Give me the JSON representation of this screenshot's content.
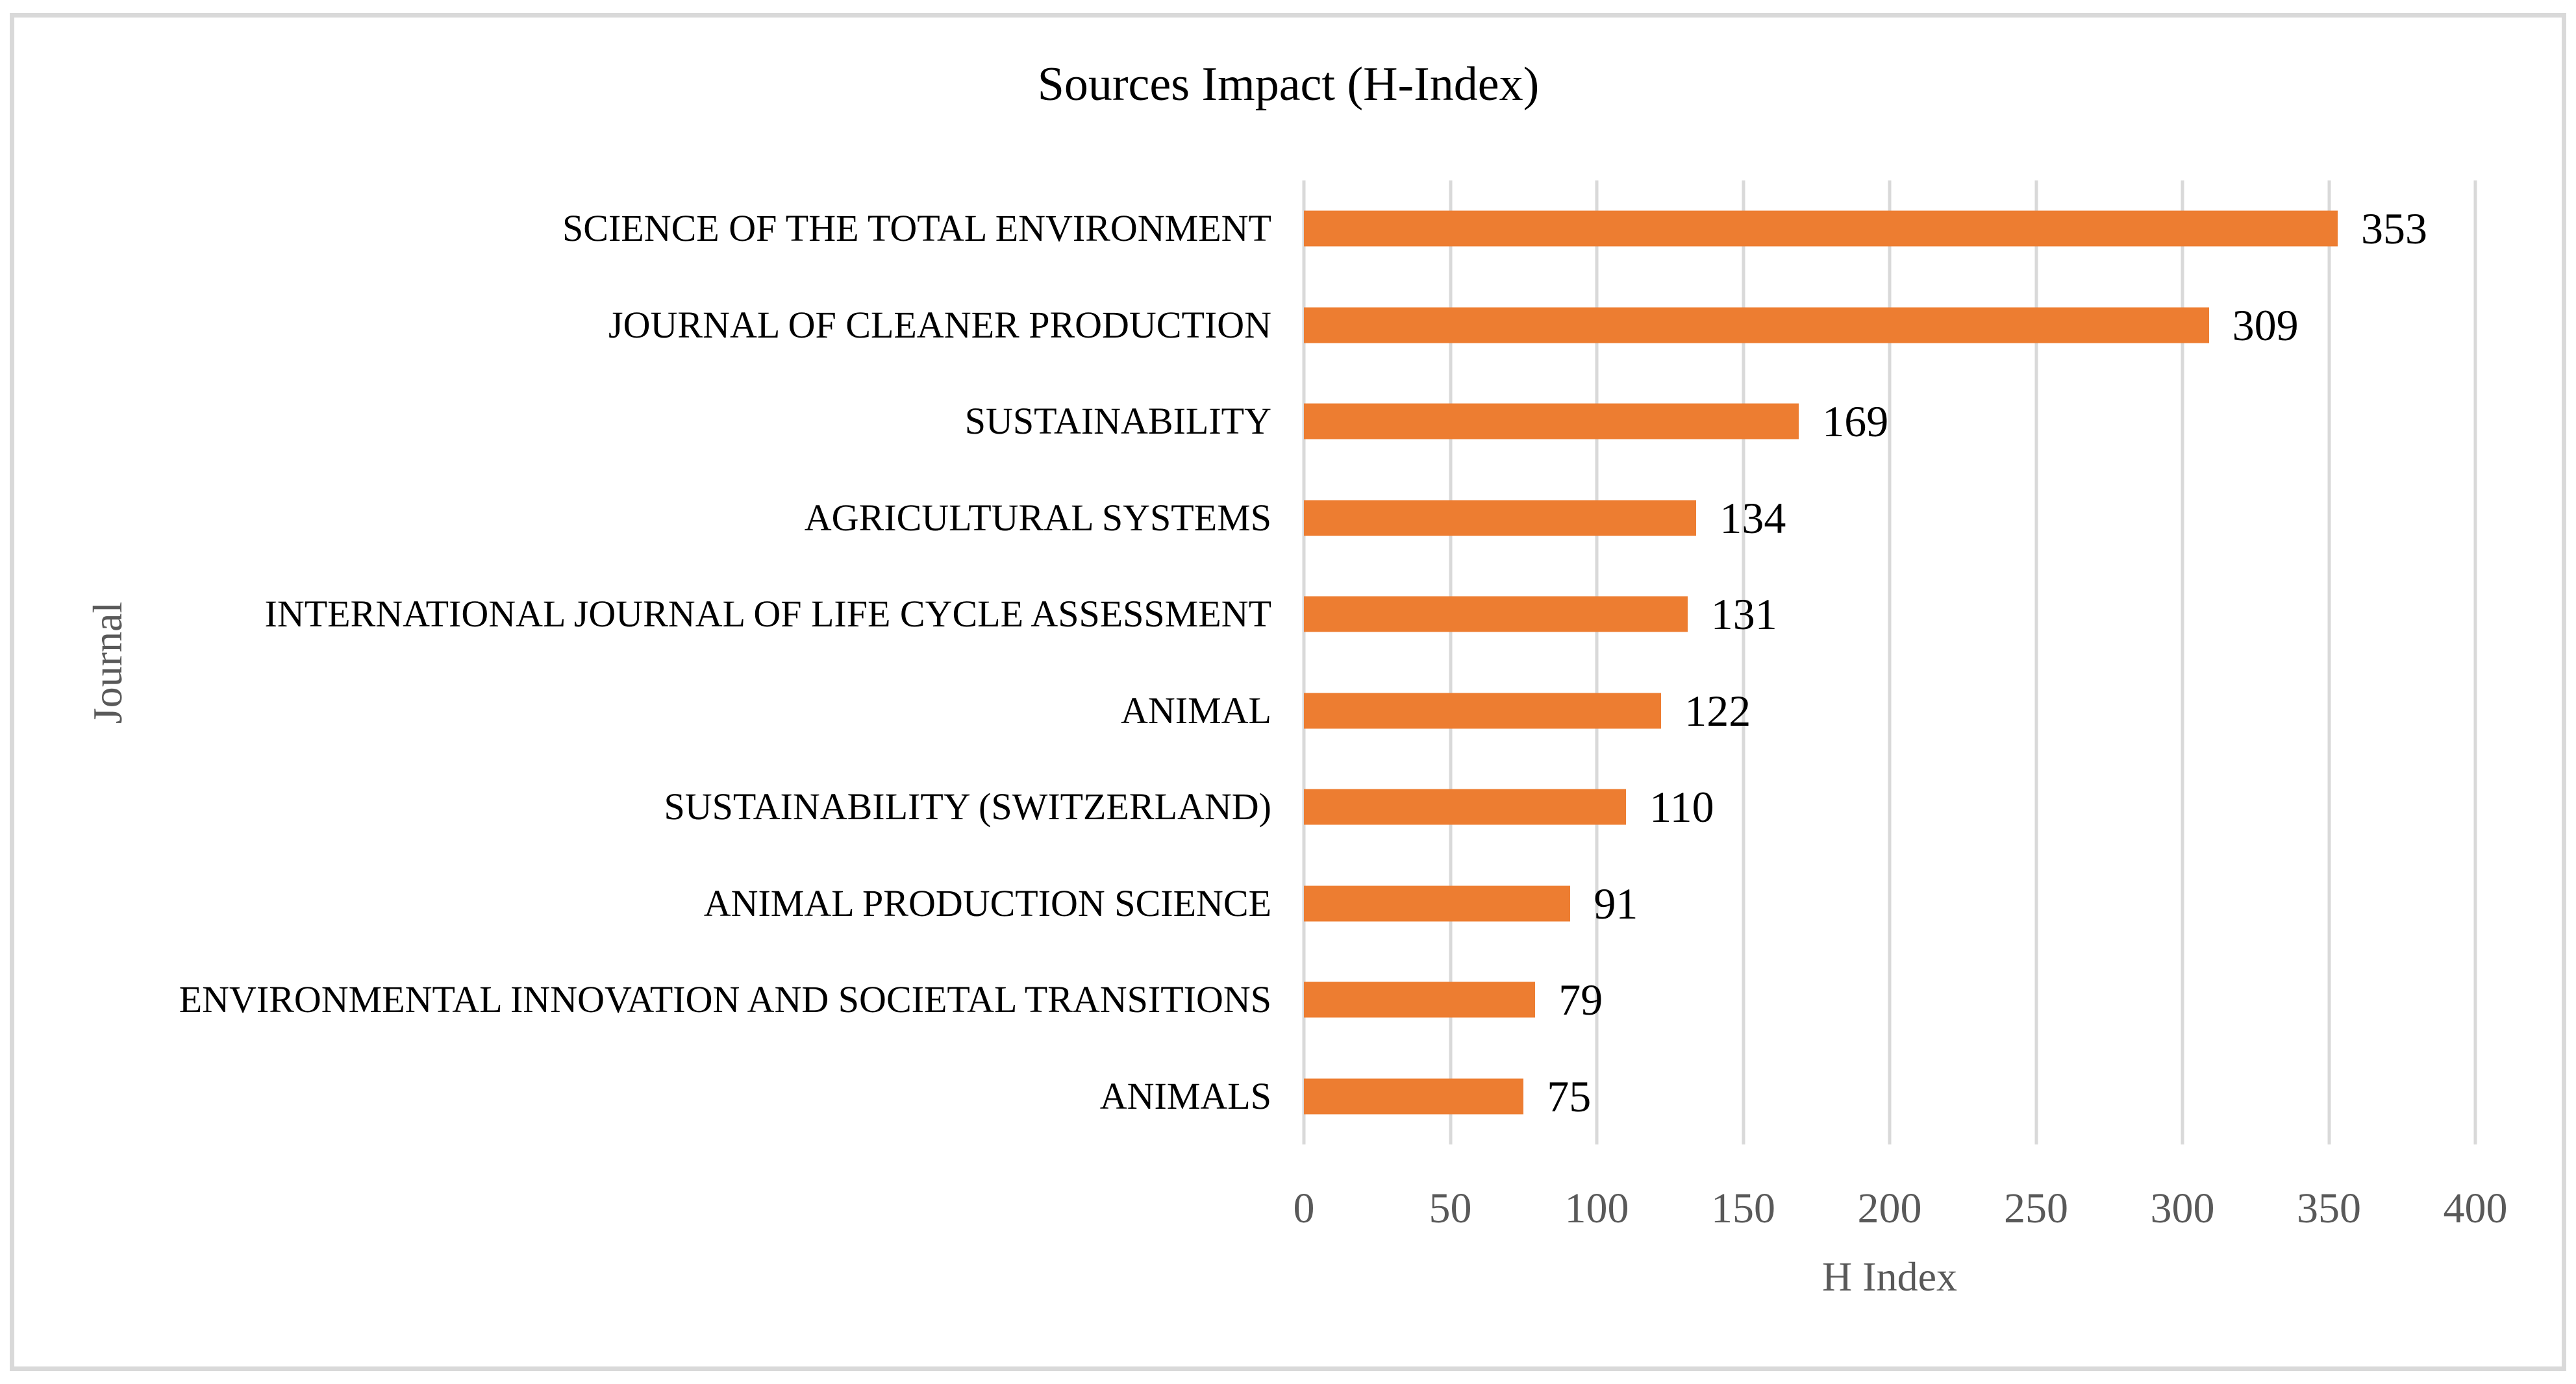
{
  "chart_data": {
    "type": "bar",
    "orientation": "horizontal",
    "title": "Sources Impact (H-Index)",
    "xlabel": "H Index",
    "ylabel": "Journal",
    "categories": [
      "SCIENCE OF THE TOTAL ENVIRONMENT",
      "JOURNAL OF CLEANER PRODUCTION",
      "SUSTAINABILITY",
      "AGRICULTURAL SYSTEMS",
      "INTERNATIONAL JOURNAL OF LIFE CYCLE ASSESSMENT",
      "ANIMAL",
      "SUSTAINABILITY (SWITZERLAND)",
      "ANIMAL PRODUCTION SCIENCE",
      "ENVIRONMENTAL INNOVATION AND SOCIETAL TRANSITIONS",
      "ANIMALS"
    ],
    "values": [
      353,
      309,
      169,
      134,
      131,
      122,
      110,
      91,
      79,
      75
    ],
    "xlim": [
      0,
      400
    ],
    "xticks": [
      0,
      50,
      100,
      150,
      200,
      250,
      300,
      350,
      400
    ],
    "grid": "vertical-gridlines-on",
    "legend": "none",
    "colors": {
      "bar": "#ED7D31",
      "gridline": "#D9D9D9",
      "border": "#D9D9D9",
      "axis_text": "#595959",
      "label_text": "#000000"
    }
  }
}
